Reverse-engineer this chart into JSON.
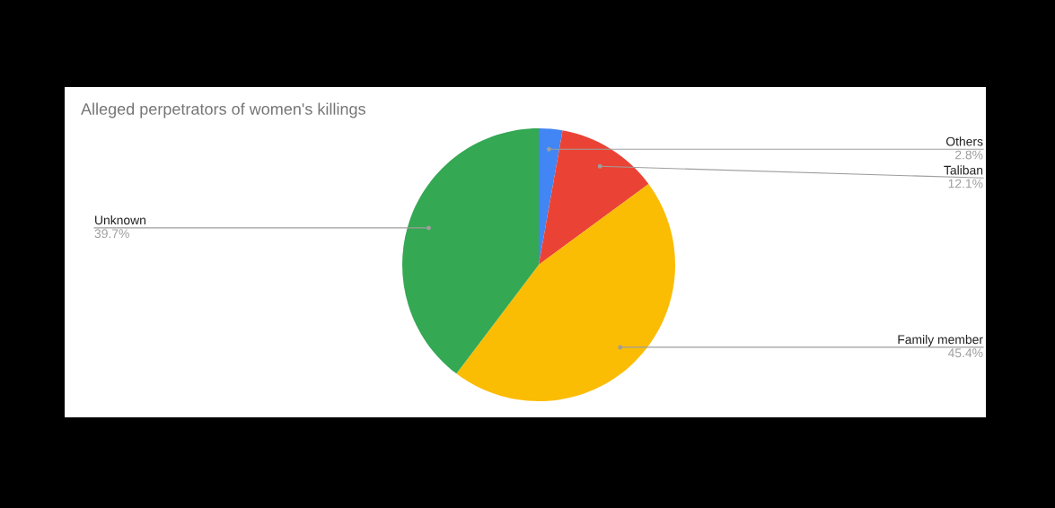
{
  "chart_data": {
    "type": "pie",
    "title": "Alleged perpetrators of women's killings",
    "categories": [
      "Others",
      "Taliban",
      "Family member",
      "Unknown"
    ],
    "values": [
      2.8,
      12.1,
      45.4,
      39.7
    ],
    "value_labels": [
      "2.8%",
      "12.1%",
      "45.4%",
      "39.7%"
    ],
    "colors": [
      "#4285f4",
      "#ea4335",
      "#fbbc04",
      "#34a853"
    ],
    "legend": false
  }
}
